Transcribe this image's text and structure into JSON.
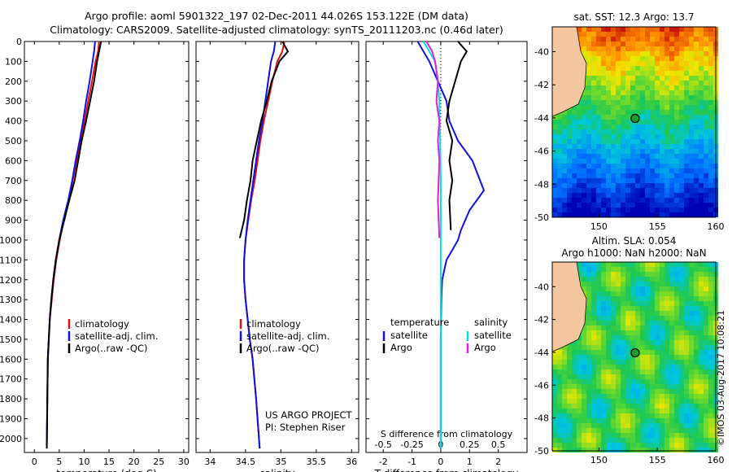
{
  "title_line1": "Argo profile: aoml 5901322_197 02-Dec-2011 44.026S 153.122E (DM data)",
  "title_line2": "Climatology: CARS2009. Satellite-adjusted climatology: synTS_20111203.nc (0.46d later)",
  "colors": {
    "climatology": "#e01010",
    "satellite": "#1010e0",
    "argo": "#000000",
    "sat_salinity": "#00e0e0",
    "argo_salinity": "#e020e0",
    "land": "#f4c6a0"
  },
  "chart_data": [
    {
      "type": "line",
      "xlabel": "temperature (deg C)",
      "ylabel": "",
      "xlim": [
        -2,
        31
      ],
      "ylim": [
        2070,
        0
      ],
      "xticks": [
        "0",
        "5",
        "10",
        "15",
        "20",
        "25",
        "30"
      ],
      "yticks": [
        "0",
        "100",
        "200",
        "300",
        "400",
        "500",
        "600",
        "700",
        "800",
        "900",
        "1000",
        "1100",
        "1200",
        "1300",
        "1400",
        "1500",
        "1600",
        "1700",
        "1800",
        "1900",
        "2000"
      ],
      "legend": [
        "climatology",
        "satellite-adj. clim.",
        "Argo(..raw -QC)"
      ],
      "series": [
        {
          "name": "climatology",
          "color": "#e01010",
          "x": [
            13.0,
            12.8,
            12.3,
            11.6,
            10.8,
            10.1,
            9.3,
            8.5,
            7.7,
            6.9,
            5.9,
            5.1,
            4.4,
            3.9,
            3.5,
            3.1,
            2.9,
            2.7,
            2.6,
            2.5
          ],
          "y": [
            0,
            50,
            100,
            200,
            300,
            400,
            500,
            600,
            700,
            800,
            900,
            1000,
            1100,
            1200,
            1300,
            1400,
            1500,
            1600,
            1800,
            2050
          ]
        },
        {
          "name": "satellite-adj. clim.",
          "color": "#1010e0",
          "x": [
            12.2,
            12.0,
            11.7,
            11.1,
            10.4,
            9.8,
            9.1,
            8.3,
            7.6,
            6.8,
            5.8,
            5.0,
            4.3,
            3.8,
            3.4,
            3.1,
            2.9,
            2.7,
            2.6,
            2.5
          ],
          "y": [
            0,
            50,
            100,
            200,
            300,
            400,
            500,
            600,
            700,
            800,
            900,
            1000,
            1100,
            1200,
            1300,
            1400,
            1500,
            1600,
            1800,
            2050
          ]
        },
        {
          "name": "Argo(..raw -QC)",
          "color": "#000000",
          "x": [
            13.4,
            13.0,
            12.6,
            12.0,
            11.2,
            10.4,
            9.5,
            8.8,
            8.1,
            7.0,
            6.0,
            5.0,
            4.3,
            3.8,
            3.4,
            3.1,
            2.9,
            2.7,
            2.6,
            2.5
          ],
          "y": [
            0,
            50,
            100,
            200,
            300,
            400,
            500,
            600,
            700,
            800,
            900,
            1000,
            1100,
            1200,
            1300,
            1400,
            1500,
            1600,
            1800,
            2050
          ]
        }
      ]
    },
    {
      "type": "line",
      "xlabel": "salinity",
      "xlim": [
        33.8,
        36.1
      ],
      "ylim": [
        2070,
        0
      ],
      "xticks": [
        "34",
        "34.5",
        "35",
        "35.5",
        "36"
      ],
      "legend": [
        "climatology",
        "satellite-adj. clim.",
        "Argo(..raw -QC)"
      ],
      "annotations": [
        "US ARGO PROJECT",
        "PI: Stephen Riser"
      ],
      "series": [
        {
          "name": "climatology",
          "color": "#e01010",
          "x": [
            35.05,
            35.02,
            34.95,
            34.88,
            34.82,
            34.76,
            34.71,
            34.67,
            34.63,
            34.58,
            34.54,
            34.5,
            34.48,
            34.48,
            34.5,
            34.53,
            34.56,
            34.6,
            34.65,
            34.7
          ],
          "y": [
            0,
            50,
            100,
            200,
            300,
            400,
            500,
            600,
            700,
            800,
            900,
            1000,
            1100,
            1200,
            1300,
            1400,
            1500,
            1600,
            1800,
            2050
          ]
        },
        {
          "name": "satellite-adj. clim.",
          "color": "#1010e0",
          "x": [
            34.92,
            34.9,
            34.86,
            34.82,
            34.78,
            34.74,
            34.69,
            34.65,
            34.61,
            34.57,
            34.53,
            34.5,
            34.48,
            34.48,
            34.5,
            34.53,
            34.56,
            34.6,
            34.65,
            34.7
          ],
          "y": [
            0,
            50,
            100,
            200,
            300,
            400,
            500,
            600,
            700,
            800,
            900,
            1000,
            1100,
            1200,
            1300,
            1400,
            1500,
            1600,
            1800,
            2050
          ]
        },
        {
          "name": "Argo(..raw -QC)",
          "color": "#000000",
          "x": [
            35.02,
            35.1,
            34.98,
            34.87,
            34.8,
            34.72,
            34.66,
            34.6,
            34.57,
            34.52,
            34.48,
            34.42
          ],
          "y": [
            0,
            50,
            100,
            200,
            300,
            400,
            500,
            600,
            700,
            800,
            900,
            990
          ]
        }
      ]
    },
    {
      "type": "line",
      "xlabel": "T difference from climatology",
      "xlabel2": "S difference from climatology",
      "xlim": [
        -2.6,
        3.0
      ],
      "ylim": [
        2070,
        0
      ],
      "xticks": [
        "-2",
        "-1",
        "0",
        "1",
        "2"
      ],
      "xticks_s": [
        "-0.5",
        "-0.25",
        "0",
        "0.25",
        "0.5"
      ],
      "legend": {
        "temperature": [
          "satellite",
          "Argo"
        ],
        "salinity": [
          "satellite",
          "Argo"
        ]
      },
      "series": [
        {
          "name": "satellite",
          "color": "#1010e0",
          "x": [
            -0.8,
            -0.6,
            -0.4,
            -0.1,
            0.2,
            0.3,
            0.6,
            1.1,
            1.5,
            1.0,
            0.7,
            0.6,
            0.4,
            0.2,
            0.05,
            0.02,
            0,
            0,
            0
          ],
          "y": [
            0,
            50,
            100,
            200,
            300,
            400,
            500,
            600,
            750,
            850,
            950,
            1000,
            1050,
            1100,
            1200,
            1300,
            1500,
            1800,
            2050
          ]
        },
        {
          "name": "Argo",
          "color": "#000000",
          "x": [
            0.6,
            0.9,
            0.7,
            0.5,
            0.3,
            0.2,
            0.4,
            0.3,
            0.4,
            0.3,
            0.35
          ],
          "y": [
            0,
            50,
            100,
            200,
            300,
            400,
            500,
            600,
            700,
            800,
            950
          ]
        },
        {
          "name": "satellite",
          "color": "#00e0e0",
          "x": [
            -0.6,
            -0.4,
            -0.2,
            -0.1,
            -0.05,
            -0.02,
            0,
            0,
            0,
            0,
            0
          ],
          "y": [
            0,
            50,
            100,
            200,
            300,
            500,
            700,
            1000,
            1300,
            1700,
            2050
          ]
        },
        {
          "name": "Argo",
          "color": "#e020e0",
          "x": [
            -0.5,
            -0.3,
            -0.2,
            -0.1,
            -0.15,
            -0.05,
            -0.1,
            -0.05,
            -0.1,
            -0.05
          ],
          "y": [
            0,
            50,
            100,
            200,
            300,
            400,
            500,
            600,
            800,
            990
          ]
        }
      ]
    }
  ],
  "maps": [
    {
      "title": "sat. SST: 12.3 Argo: 13.7",
      "xticks": [
        "150",
        "155",
        "160"
      ],
      "yticks": [
        "-40",
        "-42",
        "-44",
        "-46",
        "-48",
        "-50"
      ],
      "xlim": [
        146,
        160
      ],
      "ylim": [
        -50,
        -38.5
      ],
      "marker": {
        "lon": 153.1,
        "lat": -44.03
      }
    },
    {
      "title_line1": "Altim. SLA: 0.054",
      "title_line2": "Argo h1000: NaN h2000: NaN",
      "xticks": [
        "150",
        "155",
        "160"
      ],
      "yticks": [
        "-40",
        "-42",
        "-44",
        "-46",
        "-48",
        "-50"
      ],
      "xlim": [
        146,
        160
      ],
      "ylim": [
        -50,
        -38.5
      ],
      "marker": {
        "lon": 153.1,
        "lat": -44.03
      }
    }
  ],
  "footer_vertical": "©IMOS 03-Aug-2017 10:08:21"
}
